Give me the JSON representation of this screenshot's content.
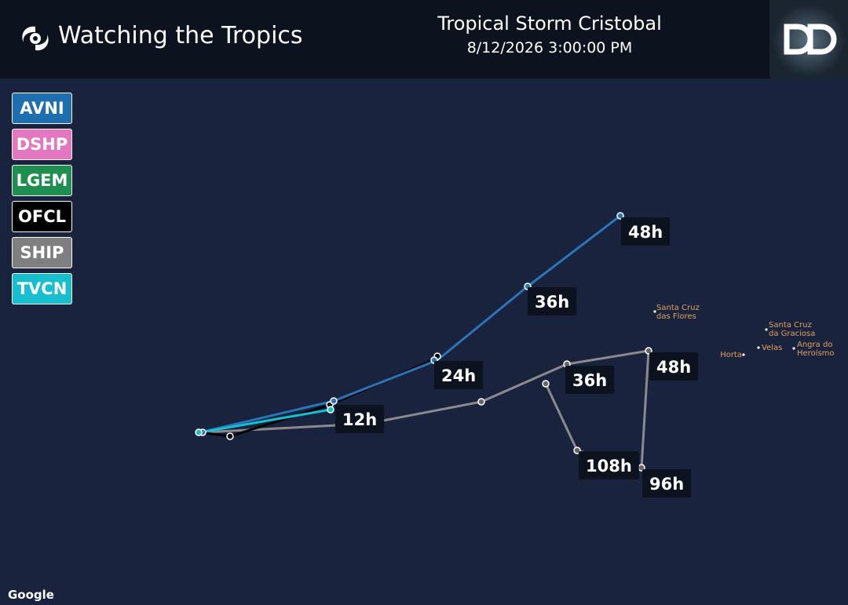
{
  "header": {
    "title": "Watching the Tropics",
    "storm": "Tropical Storm Cristobal",
    "datetime": "8/12/2026 3:00:00 PM"
  },
  "legend": [
    {
      "name": "AVNI",
      "color": "#1f6fb0"
    },
    {
      "name": "DSHP",
      "color": "#e377c2"
    },
    {
      "name": "LGEM",
      "color": "#1f8f4f"
    },
    {
      "name": "OFCL",
      "color": "#000000"
    },
    {
      "name": "SHIP",
      "color": "#7f7f7f"
    },
    {
      "name": "TVCN",
      "color": "#17becf"
    }
  ],
  "track_labels": [
    "48h",
    "36h",
    "24h",
    "12h",
    "36h",
    "48h",
    "108h",
    "96h"
  ],
  "places": [
    {
      "lines": [
        "Santa Cruz",
        "das Flores"
      ]
    },
    {
      "lines": [
        "Santa Cruz",
        "da Graciosa"
      ]
    },
    {
      "lines": [
        "Velas"
      ]
    },
    {
      "lines": [
        "Angra do",
        "Heroísmo"
      ]
    },
    {
      "lines": [
        "Horta"
      ]
    }
  ],
  "attribution": "Google"
}
